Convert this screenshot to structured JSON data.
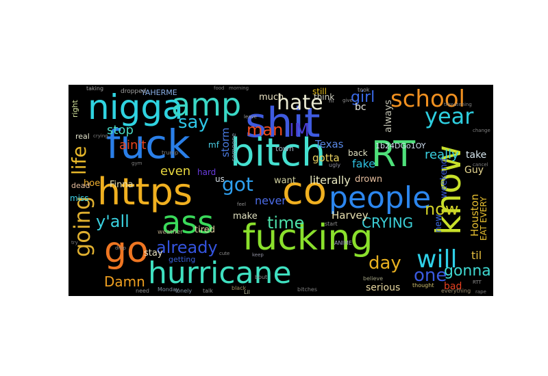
{
  "background_color": "#000000",
  "words": [
    {
      "text": "nigga",
      "color": "#2fd3e0"
    },
    {
      "text": "amp",
      "color": "#3ad8c6"
    },
    {
      "text": "shit",
      "color": "#3f5be0"
    },
    {
      "text": "fuck",
      "color": "#2a7fe8"
    },
    {
      "text": "bitch",
      "color": "#45e0d0"
    },
    {
      "text": "RT",
      "color": "#4ee07a"
    },
    {
      "text": "know",
      "color": "#c8e02a"
    },
    {
      "text": "https",
      "color": "#f0b020"
    },
    {
      "text": "co",
      "color": "#f0b020"
    },
    {
      "text": "people",
      "color": "#2c86ee"
    },
    {
      "text": "ass",
      "color": "#3ad95a"
    },
    {
      "text": "fucking",
      "color": "#8ae02c"
    },
    {
      "text": "go",
      "color": "#ef7622"
    },
    {
      "text": "hurricane",
      "color": "#3fe0c0"
    },
    {
      "text": "hate",
      "color": "#e8e8d0"
    },
    {
      "text": "school",
      "color": "#f09020"
    },
    {
      "text": "year",
      "color": "#2ecfe0"
    },
    {
      "text": "say",
      "color": "#2ec7e8"
    },
    {
      "text": "man",
      "color": "#ef4d1e"
    },
    {
      "text": "IM",
      "color": "#4a3cd0"
    },
    {
      "text": "girl",
      "color": "#3a6ae8"
    },
    {
      "text": "got",
      "color": "#2ea0f0"
    },
    {
      "text": "life",
      "color": "#e8b82a"
    },
    {
      "text": "going",
      "color": "#e0b030"
    },
    {
      "text": "y'all",
      "color": "#3ad2e0"
    },
    {
      "text": "time",
      "color": "#4ce0a8"
    },
    {
      "text": "now",
      "color": "#d0d028"
    },
    {
      "text": "will",
      "color": "#2fd0e8"
    },
    {
      "text": "day",
      "color": "#e8b020"
    },
    {
      "text": "one",
      "color": "#3a5ae0"
    },
    {
      "text": "gonna",
      "color": "#3fd8d0"
    },
    {
      "text": "already",
      "color": "#3454e0"
    },
    {
      "text": "Damn",
      "color": "#f0a020"
    },
    {
      "text": "CRYING",
      "color": "#3cd0d8"
    },
    {
      "text": "really",
      "color": "#3ad0e0"
    },
    {
      "text": "stop",
      "color": "#4ad8c0"
    },
    {
      "text": "ain't",
      "color": "#e84420"
    },
    {
      "text": "even",
      "color": "#e8d840"
    },
    {
      "text": "never",
      "color": "#4c6ce8"
    },
    {
      "text": "literally",
      "color": "#e8e8c0"
    },
    {
      "text": "want",
      "color": "#d0d0a0"
    },
    {
      "text": "fake",
      "color": "#2ec0e0"
    },
    {
      "text": "Harvey",
      "color": "#e8e0b0"
    },
    {
      "text": "Houston",
      "color": "#e8c030"
    },
    {
      "text": "Texas",
      "color": "#5a8ae8"
    },
    {
      "text": "gotta",
      "color": "#e8d060"
    },
    {
      "text": "storm",
      "color": "#4a7ae0"
    },
    {
      "text": "much",
      "color": "#e8e0c0"
    },
    {
      "text": "think",
      "color": "#d0d0c0"
    },
    {
      "text": "still",
      "color": "#e8c020"
    },
    {
      "text": "bc",
      "color": "#e8e8e0"
    },
    {
      "text": "always",
      "color": "#c0c0b0"
    },
    {
      "text": "1b24DGo1OY",
      "color": "#d0e0f0"
    },
    {
      "text": "weekend",
      "color": "#3a5ad8"
    },
    {
      "text": "take",
      "color": "#d8e8f0"
    },
    {
      "text": "Guy",
      "color": "#e8d890"
    },
    {
      "text": "EAT EVERY",
      "color": "#e8c030"
    },
    {
      "text": "til",
      "color": "#e8c040"
    },
    {
      "text": "bad",
      "color": "#e84020"
    },
    {
      "text": "serious",
      "color": "#e8d8a0"
    },
    {
      "text": "drown",
      "color": "#e8c0a0"
    },
    {
      "text": "back",
      "color": "#e0e0c0"
    },
    {
      "text": "new",
      "color": "#3a6ae0"
    },
    {
      "text": "Finna",
      "color": "#e8e0b0"
    },
    {
      "text": "hoe",
      "color": "#f0b030"
    },
    {
      "text": "mf",
      "color": "#4ad0e8"
    },
    {
      "text": "us",
      "color": "#d8e0e8"
    },
    {
      "text": "hard",
      "color": "#6a3ce0"
    },
    {
      "text": "tired",
      "color": "#e0d0a0"
    },
    {
      "text": "make",
      "color": "#e0e0c0"
    },
    {
      "text": "getting",
      "color": "#3a60d8"
    },
    {
      "text": "stay",
      "color": "#e8e0c0"
    },
    {
      "text": "miss",
      "color": "#3ad0e8"
    },
    {
      "text": "dead",
      "color": "#e8c0a0"
    },
    {
      "text": "real",
      "color": "#e8e8d0"
    },
    {
      "text": "right",
      "color": "#d8e8a0"
    },
    {
      "text": "YAHERME",
      "color": "#8ab0e8"
    },
    {
      "text": "dropped",
      "color": "#a0a0a0"
    },
    {
      "text": "taking",
      "color": "#a0a0a0"
    },
    {
      "text": "bout",
      "color": "#909090"
    },
    {
      "text": "black",
      "color": "#a09060"
    },
    {
      "text": "Lil",
      "color": "#c0c0a0"
    },
    {
      "text": "talk",
      "color": "#909090"
    },
    {
      "text": "need",
      "color": "#909090"
    },
    {
      "text": "Monday",
      "color": "#8090a0"
    },
    {
      "text": "lonely",
      "color": "#8090a0"
    },
    {
      "text": "weather",
      "color": "#b0a080"
    },
    {
      "text": "believe",
      "color": "#a0a080"
    },
    {
      "text": "thought",
      "color": "#d0c070"
    },
    {
      "text": "everything",
      "color": "#a09070"
    },
    {
      "text": "ANIME",
      "color": "#a0a0c0"
    },
    {
      "text": "start",
      "color": "#909090"
    },
    {
      "text": "took",
      "color": "#a0a0a0"
    },
    {
      "text": "give",
      "color": "#909090"
    },
    {
      "text": "threatening",
      "color": "#808080"
    },
    {
      "text": "town",
      "color": "#a0b0c0"
    },
    {
      "text": "someone",
      "color": "#8090a0"
    },
    {
      "text": "ugly",
      "color": "#9090a0"
    },
    {
      "text": "drop",
      "color": "#909090"
    },
    {
      "text": "keep",
      "color": "#9090a0"
    },
    {
      "text": "feel",
      "color": "#909090"
    },
    {
      "text": "cute",
      "color": "#909090"
    },
    {
      "text": "cancel",
      "color": "#808080"
    },
    {
      "text": "change",
      "color": "#808080"
    },
    {
      "text": "RTT",
      "color": "#909090"
    },
    {
      "text": "rape",
      "color": "#808080"
    },
    {
      "text": "try",
      "color": "#808080"
    },
    {
      "text": "bitches",
      "color": "#808080"
    },
    {
      "text": "food",
      "color": "#808080"
    },
    {
      "text": "morning",
      "color": "#808080"
    },
    {
      "text": "hi",
      "color": "#a0a0a0"
    },
    {
      "text": "leave",
      "color": "#a0a0a0"
    },
    {
      "text": "crying",
      "color": "#808080"
    },
    {
      "text": "trump",
      "color": "#808080"
    },
    {
      "text": "gym",
      "color": "#808080"
    }
  ]
}
